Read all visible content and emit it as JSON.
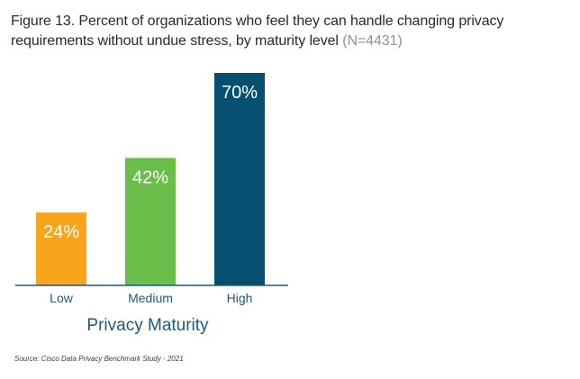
{
  "chart_data": {
    "type": "bar",
    "title": "Figure 13. Percent of organizations who feel they can handle changing privacy requirements without undue stress, by maturity level",
    "sample_note": "(N=4431)",
    "categories": [
      "Low",
      "Medium",
      "High"
    ],
    "values": [
      24,
      42,
      70
    ],
    "data_labels": [
      "24%",
      "42%",
      "70%"
    ],
    "colors": [
      "#f8a51c",
      "#6cbe4a",
      "#074f71"
    ],
    "xlabel": "Privacy Maturity",
    "ylabel": "",
    "ylim": [
      0,
      73
    ],
    "grid": false,
    "legend": "none",
    "source": "Source: Cisco Data Privacy Benchmark Study - 2021"
  }
}
